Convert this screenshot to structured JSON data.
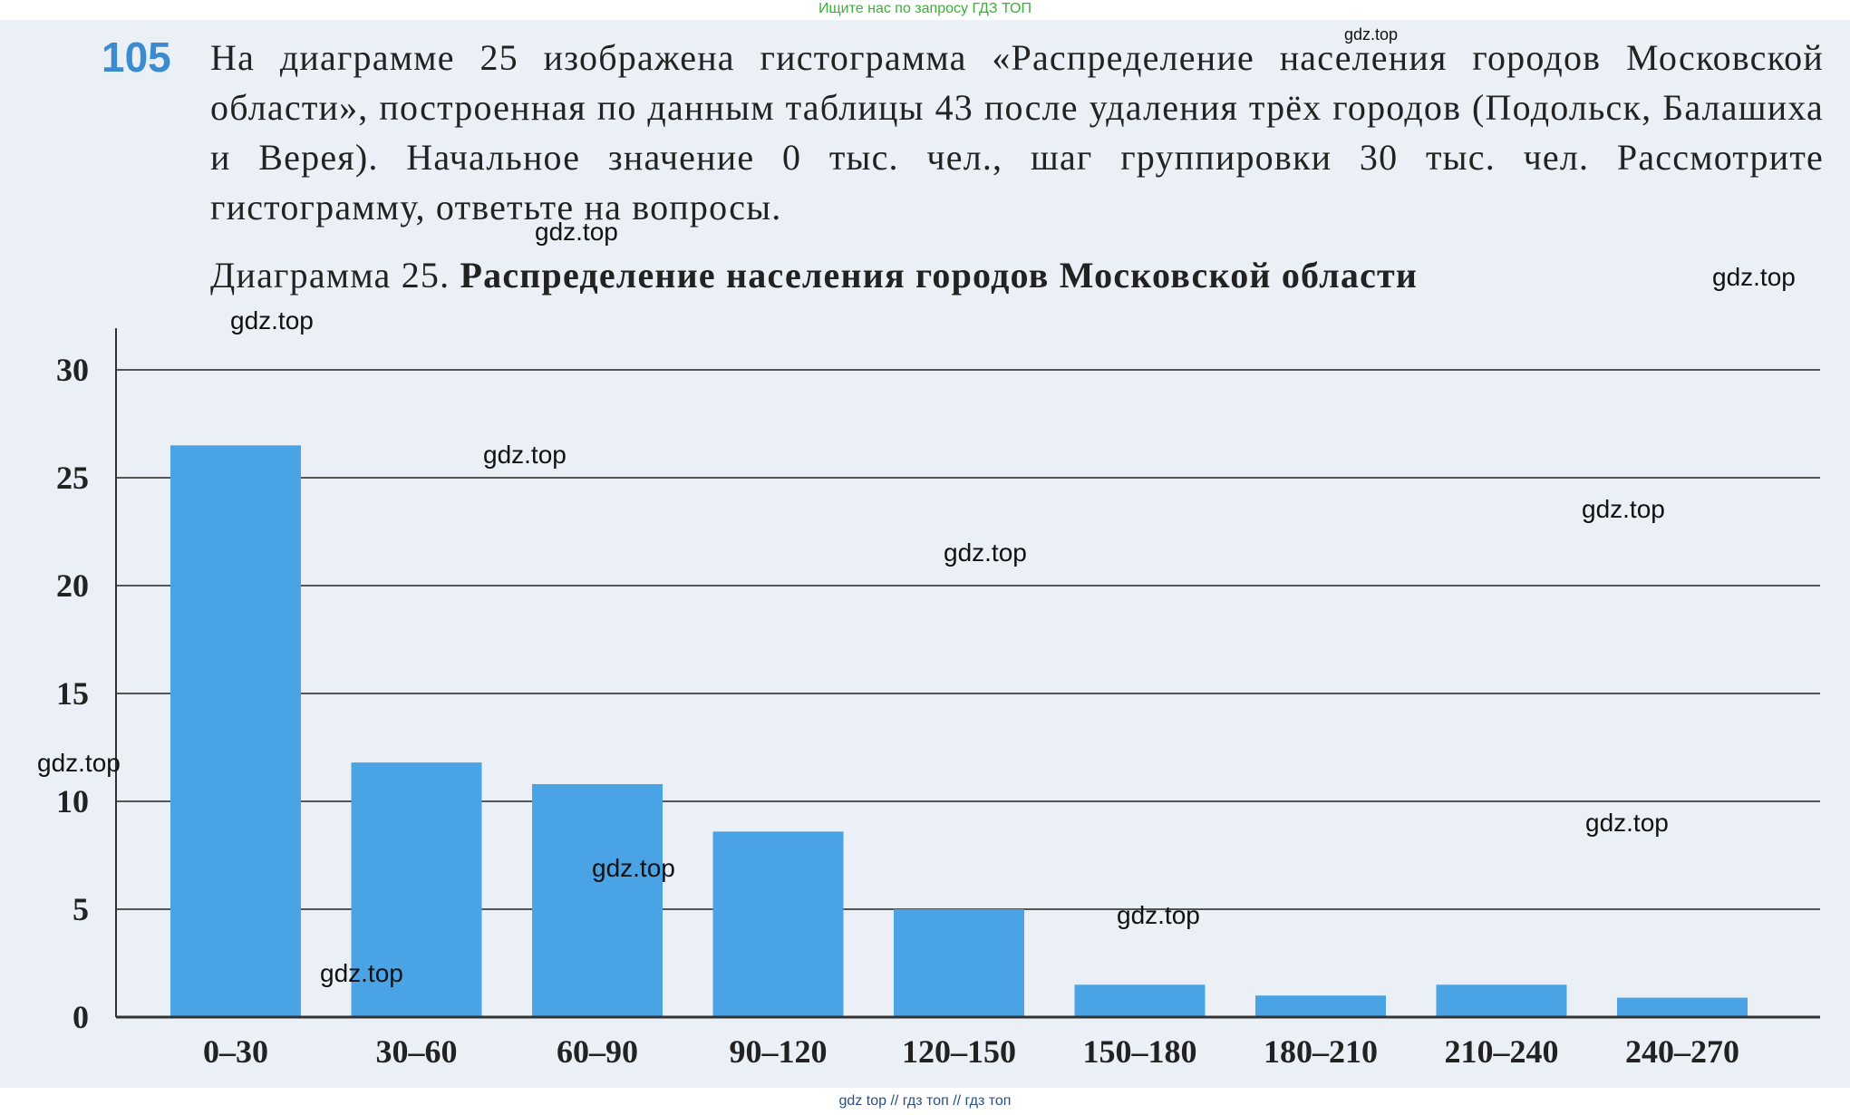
{
  "banner_top": "Ищите нас по запросу ГДЗ ТОП",
  "banner_bottom": "gdz top  //  гдз топ  //  гдз топ",
  "problem": {
    "number": "105",
    "text": "На диаграмме 25 изображена гистограмма «Распределение населения городов Московской области», построенная по данным таблицы 43 после удаления трёх городов (Подольск, Балашиха и Верея). Начальное значение 0 тыс. чел., шаг группировки 30 тыс. чел. Рассмотрите гистограмму, ответьте на вопросы."
  },
  "caption": {
    "prefix": "Диаграмма 25.",
    "title": "Распределение населения городов Московской области"
  },
  "watermarks": [
    "gdz.top",
    "gdz.top",
    "gdz.top",
    "gdz.top",
    "gdz.top",
    "gdz.top",
    "gdz.top",
    "gdz.top",
    "gdz.top",
    "gdz.top",
    "gdz.top",
    "gdz.top"
  ],
  "colors": {
    "bar": "#4aa3e4",
    "gridline": "#555555",
    "axis": "#333333",
    "number_accent": "#3a8bd0"
  },
  "chart_data": {
    "type": "bar",
    "title": "Распределение населения городов Московской области",
    "xlabel": "",
    "ylabel": "",
    "categories": [
      "0–30",
      "30–60",
      "60–90",
      "90–120",
      "120–150",
      "150–180",
      "180–210",
      "210–240",
      "240–270"
    ],
    "values": [
      26.5,
      11.8,
      10.8,
      8.6,
      5,
      1.5,
      1,
      1.5,
      0.9
    ],
    "ylim": [
      0,
      30
    ],
    "yticks": [
      0,
      5,
      10,
      15,
      20,
      25,
      30
    ],
    "grid": true,
    "legend": "none"
  }
}
